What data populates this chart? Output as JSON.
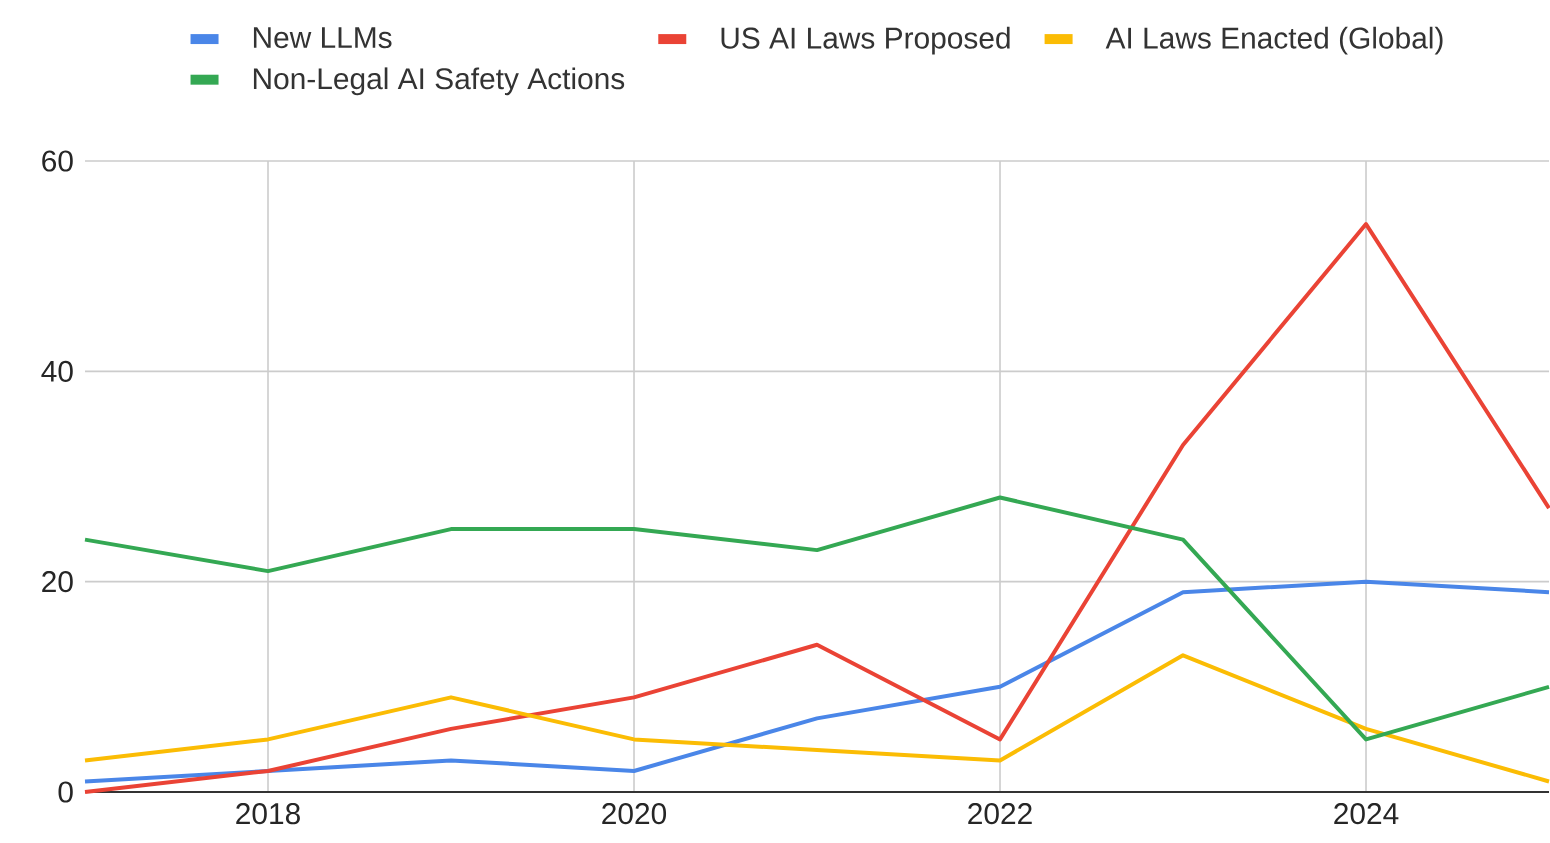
{
  "chart_data": {
    "type": "line",
    "x": [
      2017,
      2018,
      2019,
      2020,
      2021,
      2022,
      2023,
      2024,
      2025
    ],
    "series": [
      {
        "name": "New LLMs",
        "color": "#4a86e8",
        "values": [
          1,
          2,
          3,
          2,
          7,
          10,
          19,
          20,
          19
        ]
      },
      {
        "name": "US AI Laws Proposed",
        "color": "#ea4335",
        "values": [
          0,
          2,
          6,
          9,
          14,
          5,
          33,
          54,
          27
        ]
      },
      {
        "name": "AI Laws Enacted (Global)",
        "color": "#fbbc04",
        "values": [
          3,
          5,
          9,
          5,
          4,
          3,
          13,
          6,
          1
        ]
      },
      {
        "name": "Non-Legal AI Safety Actions",
        "color": "#34a853",
        "values": [
          24,
          21,
          25,
          25,
          23,
          28,
          24,
          5,
          10
        ]
      }
    ],
    "xlim": [
      2017,
      2025
    ],
    "xticks": [
      2018,
      2020,
      2022,
      2024
    ],
    "ylim": [
      0,
      60
    ],
    "yticks": [
      0,
      20,
      40,
      60
    ],
    "grid": true,
    "legend": "top",
    "marker": "none",
    "line_style": "solid"
  }
}
